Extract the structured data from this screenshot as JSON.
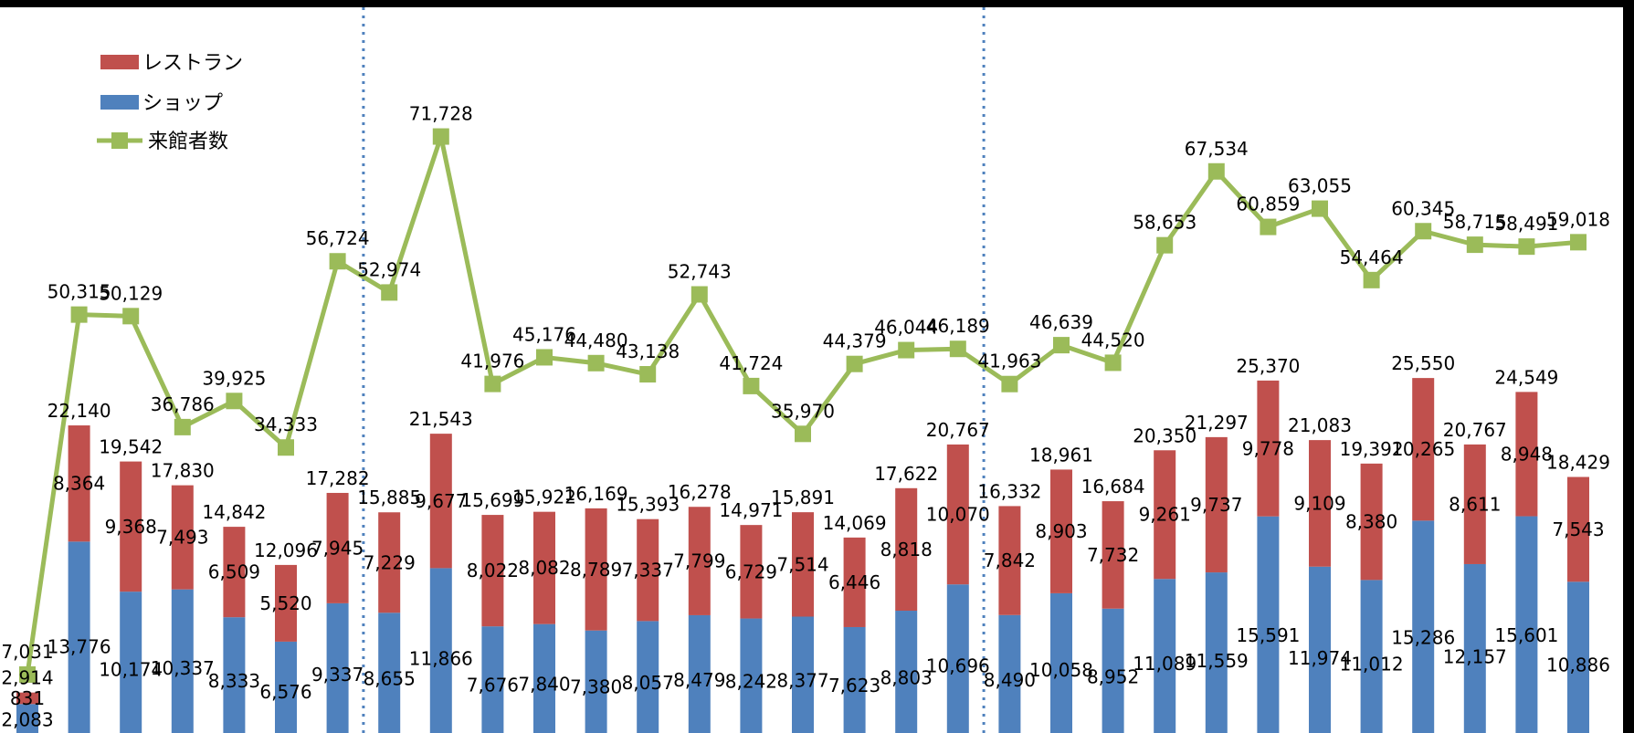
{
  "chart_data": {
    "type": "bar",
    "stacked": true,
    "grid": false,
    "legend_position": "top-left",
    "colors": {
      "background": "#ffffff",
      "frame": "#000000",
      "restaurant": "#c0504d",
      "shop": "#4f81bd",
      "visitors": "#9bbb59",
      "divider": "#4f81bd"
    },
    "legend": [
      {
        "label": "レストラン",
        "color": "#c0504d",
        "icon": "bar-swatch"
      },
      {
        "label": "ショップ",
        "color": "#4f81bd",
        "icon": "bar-swatch"
      },
      {
        "label": "来館者数",
        "color": "#9bbb59",
        "icon": "line-square-marker"
      }
    ],
    "dividers_after_index": [
      6,
      18
    ],
    "total": [
      2914,
      22140,
      19542,
      17830,
      14842,
      12096,
      17282,
      15885,
      21543,
      15699,
      15922,
      16169,
      15393,
      16278,
      14971,
      15891,
      14069,
      17622,
      20767,
      16332,
      18961,
      16684,
      20350,
      21297,
      25370,
      21083,
      19392,
      25550,
      20767,
      24549,
      18429
    ],
    "total_labels": [
      "2,914",
      "22,140",
      "19,542",
      "17,830",
      "14,842",
      "12,096",
      "17,282",
      "15,885",
      "21,543",
      "15,699",
      "15,922",
      "16,169",
      "15,393",
      "16,278",
      "14,971",
      "15,891",
      "14,069",
      "17,622",
      "20,767",
      "16,332",
      "18,961",
      "16,684",
      "20,350",
      "21,297",
      "25,370",
      "21,083",
      "19,392",
      "25,550",
      "20,767",
      "24,549",
      "18,429"
    ],
    "restaurant": [
      831,
      8364,
      9368,
      7493,
      6509,
      5520,
      7945,
      7229,
      9677,
      8022,
      8082,
      8789,
      7337,
      7799,
      6729,
      7514,
      6446,
      8818,
      10070,
      7842,
      8903,
      7732,
      9261,
      9737,
      9778,
      9109,
      8380,
      10265,
      8611,
      8948,
      7543
    ],
    "restaurant_labels": [
      "831",
      "8,364",
      "9,368",
      "7,493",
      "6,509",
      "5,520",
      "7,945",
      "7,229",
      "9,677",
      "8,022",
      "8,082",
      "8,789",
      "7,337",
      "7,799",
      "6,729",
      "7,514",
      "6,446",
      "8,818",
      "10,070",
      "7,842",
      "8,903",
      "7,732",
      "9,261",
      "9,737",
      "9,778",
      "9,109",
      "8,380",
      "10,265",
      "8,611",
      "8,948",
      "7,543"
    ],
    "shop": [
      2083,
      13776,
      10174,
      10337,
      8333,
      6576,
      9337,
      8655,
      11866,
      7676,
      7840,
      7380,
      8057,
      8479,
      8242,
      8377,
      7623,
      8803,
      10696,
      8490,
      10058,
      8952,
      11089,
      11559,
      15591,
      11974,
      11012,
      15286,
      12157,
      15601,
      10886
    ],
    "shop_labels": [
      "2,083",
      "13,776",
      "10,174",
      "10,337",
      "8,333",
      "6,576",
      "9,337",
      "8,655",
      "11,866",
      "7,676",
      "7,840",
      "7,380",
      "8,057",
      "8,479",
      "8,242",
      "8,377",
      "7,623",
      "8,803",
      "10,696",
      "8,490",
      "10,058",
      "8,952",
      "11,089",
      "11,559",
      "15,591",
      "11,974",
      "11,012",
      "15,286",
      "12,157",
      "15,601",
      "10,886"
    ],
    "visitors": [
      7031,
      50315,
      50129,
      36786,
      39925,
      34333,
      56724,
      52974,
      71728,
      41976,
      45176,
      44480,
      43138,
      52743,
      41724,
      35970,
      44379,
      46044,
      46189,
      41963,
      46639,
      44520,
      58653,
      67534,
      60859,
      63055,
      54464,
      60345,
      58715,
      58491,
      59018
    ],
    "visitors_labels": [
      "7,031",
      "50,315",
      "50,129",
      "36,786",
      "39,925",
      "34,333",
      "56,724",
      "52,974",
      "71,728",
      "41,976",
      "45,176",
      "44,480",
      "43,138",
      "52,743",
      "41,724",
      "35,970",
      "44,379",
      "46,044",
      "46,189",
      "41,963",
      "46,639",
      "44,520",
      "58,653",
      "67,534",
      "60,859",
      "63,055",
      "54,464",
      "60,345",
      "58,715",
      "58,491",
      "59,018"
    ],
    "bar_axis_range": [
      0,
      30000
    ],
    "line_axis_range": [
      0,
      82000
    ]
  }
}
